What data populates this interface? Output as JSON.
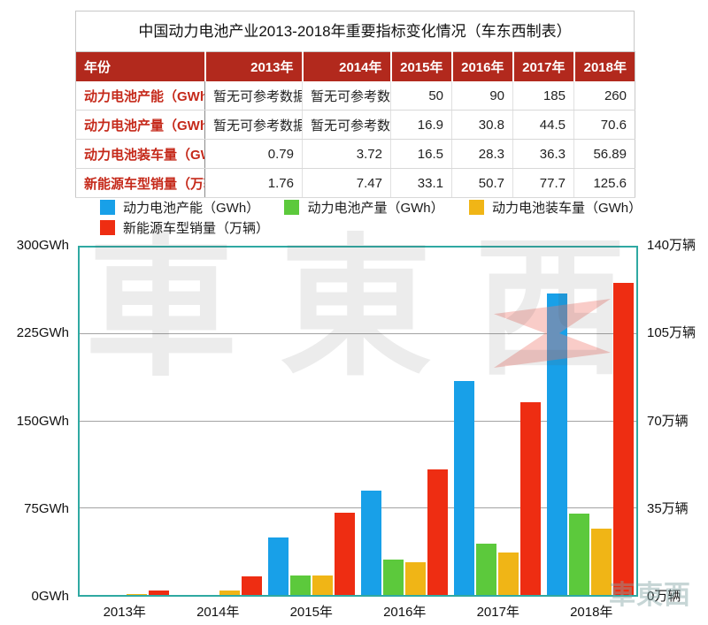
{
  "table": {
    "title": "中国动力电池产业2013-2018年重要指标变化情况（车东西制表）",
    "header": [
      "年份",
      "2013年",
      "2014年",
      "2015年",
      "2016年",
      "2017年",
      "2018年"
    ],
    "rows": [
      {
        "label": "动力电池产能（GWh）",
        "values": [
          "暂无可参考数据",
          "暂无可参考数据",
          "50",
          "90",
          "185",
          "260"
        ]
      },
      {
        "label": "动力电池产量（GWh）",
        "values": [
          "暂无可参考数据",
          "暂无可参考数据",
          "16.9",
          "30.8",
          "44.5",
          "70.6"
        ]
      },
      {
        "label": "动力电池装车量（GWh）",
        "values": [
          "0.79",
          "3.72",
          "16.5",
          "28.3",
          "36.3",
          "56.89"
        ]
      },
      {
        "label": "新能源车型销量（万辆）",
        "values": [
          "1.76",
          "7.47",
          "33.1",
          "50.7",
          "77.7",
          "125.6"
        ]
      }
    ]
  },
  "legend": {
    "items": [
      {
        "label": "动力电池产能（GWh）",
        "color": "#18A0E8"
      },
      {
        "label": "动力电池产量（GWh）",
        "color": "#5CC93C"
      },
      {
        "label": "动力电池装车量（GWh）",
        "color": "#F0B516"
      },
      {
        "label": "新能源车型销量（万辆）",
        "color": "#EE2D12"
      }
    ]
  },
  "chart_data": {
    "type": "bar",
    "categories": [
      "2013年",
      "2014年",
      "2015年",
      "2016年",
      "2017年",
      "2018年"
    ],
    "series": [
      {
        "name": "动力电池产能（GWh）",
        "axis": "left",
        "color": "#18A0E8",
        "values": [
          null,
          null,
          50,
          90,
          185,
          260
        ]
      },
      {
        "name": "动力电池产量（GWh）",
        "axis": "left",
        "color": "#5CC93C",
        "values": [
          null,
          null,
          16.9,
          30.8,
          44.5,
          70.6
        ]
      },
      {
        "name": "动力电池装车量（GWh）",
        "axis": "left",
        "color": "#F0B516",
        "values": [
          0.79,
          3.72,
          16.5,
          28.3,
          36.3,
          56.89
        ]
      },
      {
        "name": "新能源车型销量（万辆）",
        "axis": "right",
        "color": "#EE2D12",
        "values": [
          1.76,
          7.47,
          33.1,
          50.7,
          77.7,
          125.6
        ]
      }
    ],
    "left_axis": {
      "max": 300,
      "min": 0,
      "ticks_top_to_bottom": [
        "300GWh",
        "225GWh",
        "150GWh",
        "75GWh",
        "0GWh"
      ]
    },
    "right_axis": {
      "max": 140,
      "min": 0,
      "ticks_top_to_bottom": [
        "140万辆",
        "105万辆",
        "70万辆",
        "35万辆",
        "0万辆"
      ]
    },
    "grid": true,
    "legend_position": "top",
    "title": ""
  },
  "watermark": {
    "big_text": "車東西",
    "small_text": "車東西"
  },
  "colors": {
    "header_bg": "#B2291D",
    "label_red": "#C5291A",
    "plot_border": "#2FA9A2",
    "bar_blue": "#18A0E8",
    "bar_green": "#5CC93C",
    "bar_orange": "#F0B516",
    "bar_red": "#EE2D12"
  }
}
